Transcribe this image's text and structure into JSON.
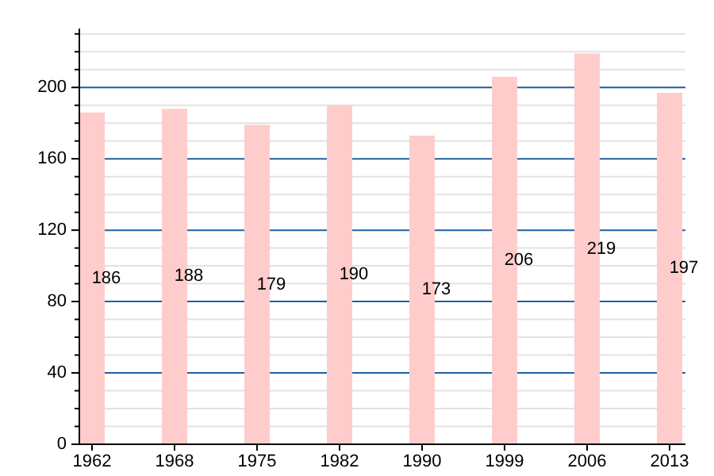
{
  "chart_data": {
    "type": "bar",
    "categories": [
      "1962",
      "1968",
      "1975",
      "1982",
      "1990",
      "1999",
      "2006",
      "2013"
    ],
    "values": [
      186,
      188,
      179,
      190,
      173,
      206,
      219,
      197
    ],
    "color": "#ffcccc",
    "data_labels": true,
    "grid": "y",
    "ylim": [
      0,
      233
    ],
    "yticks": [
      0,
      {
        "value": 10,
        "label": null
      },
      {
        "value": 20,
        "label": null
      },
      {
        "value": 30,
        "label": null
      },
      40,
      {
        "value": 50,
        "label": null
      },
      {
        "value": 60,
        "label": null
      },
      {
        "value": 70,
        "label": null
      },
      80,
      {
        "value": 90,
        "label": null
      },
      {
        "value": 100,
        "label": null
      },
      {
        "value": 110,
        "label": null
      },
      120,
      {
        "value": 130,
        "label": null
      },
      {
        "value": 140,
        "label": null
      },
      {
        "value": 150,
        "label": null
      },
      160,
      {
        "value": 170,
        "label": null
      },
      {
        "value": 180,
        "label": null
      },
      {
        "value": 190,
        "label": null
      },
      200,
      {
        "value": 210,
        "label": null
      },
      {
        "value": 220,
        "label": null
      },
      {
        "value": 230,
        "label": null
      }
    ]
  }
}
